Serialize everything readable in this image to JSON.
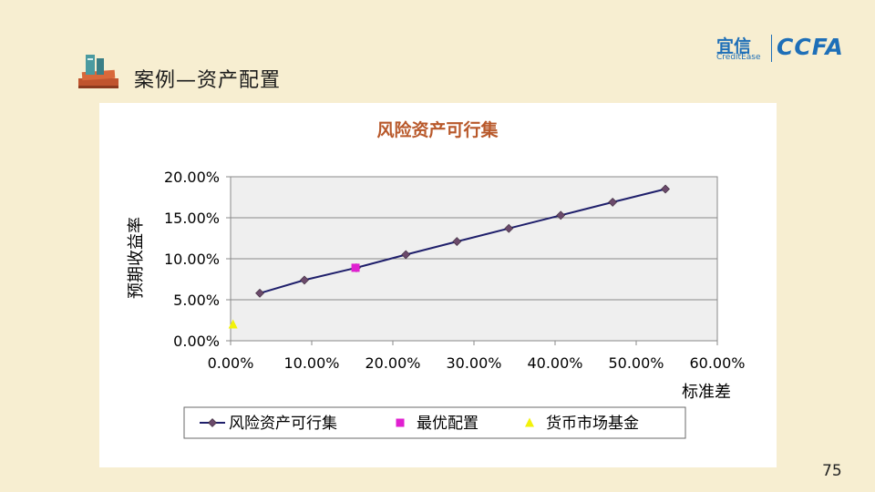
{
  "slide": {
    "title": "案例—资产配置",
    "page_number": "75"
  },
  "logo": {
    "brand_cn": "宜信",
    "brand_en": "CreditEase",
    "partner": "CCFA"
  },
  "colors": {
    "background": "#f7eed1",
    "chart_title": "#b8582a",
    "frontier_line": "#1f1f6b",
    "frontier_marker": "#6b4a6b",
    "optimal_marker": "#e020d0",
    "money_market_marker": "#f2f20a",
    "plot_area": "#efefef",
    "logo_blue": "#1e6fb8"
  },
  "chart_data": {
    "type": "scatter",
    "title": "风险资产可行集",
    "xlabel": "标准差",
    "ylabel": "预期收益率",
    "xlim": [
      0,
      0.6
    ],
    "ylim": [
      0,
      0.2
    ],
    "x_ticks": [
      0,
      0.1,
      0.2,
      0.3,
      0.4,
      0.5,
      0.6
    ],
    "y_ticks": [
      0,
      0.05,
      0.1,
      0.15,
      0.2
    ],
    "x_tick_labels": [
      "0.00%",
      "10.00%",
      "20.00%",
      "30.00%",
      "40.00%",
      "50.00%",
      "60.00%"
    ],
    "y_tick_labels": [
      "0.00%",
      "5.00%",
      "10.00%",
      "15.00%",
      "20.00%"
    ],
    "grid": "horizontal",
    "legend_position": "bottom",
    "series": [
      {
        "name": "风险资产可行集",
        "marker": "diamond",
        "line": true,
        "x": [
          0.036,
          0.091,
          0.155,
          0.216,
          0.279,
          0.343,
          0.407,
          0.471,
          0.536
        ],
        "y": [
          0.058,
          0.074,
          0.089,
          0.105,
          0.121,
          0.137,
          0.153,
          0.169,
          0.185
        ]
      },
      {
        "name": "最优配置",
        "marker": "square",
        "line": false,
        "x": [
          0.154
        ],
        "y": [
          0.089
        ]
      },
      {
        "name": "货币市场基金",
        "marker": "triangle",
        "line": false,
        "x": [
          0.003
        ],
        "y": [
          0.02
        ]
      }
    ]
  }
}
